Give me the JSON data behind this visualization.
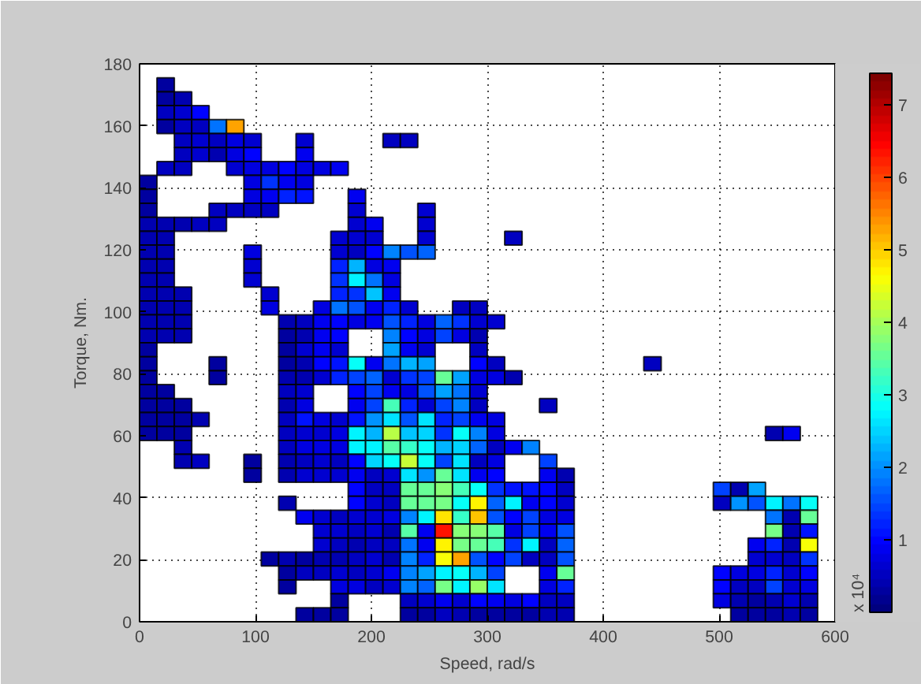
{
  "chart_data": {
    "type": "heatmap",
    "xlabel": "Speed, rad/s",
    "ylabel": "Torque, Nm.",
    "clabel": "x 10⁴",
    "x": [
      7.5,
      22.5,
      37.5,
      52.5,
      67.5,
      82.5,
      97.5,
      112.5,
      127.5,
      142.5,
      157.5,
      172.5,
      187.5,
      202.5,
      217.5,
      232.5,
      247.5,
      262.5,
      277.5,
      292.5,
      307.5,
      322.5,
      337.5,
      352.5,
      367.5,
      382.5,
      397.5,
      412.5,
      427.5,
      442.5,
      457.5,
      472.5,
      487.5,
      502.5,
      517.5,
      532.5,
      547.5,
      562.5,
      577.5
    ],
    "y": [
      173.25,
      168.75,
      164.25,
      159.75,
      155.25,
      150.75,
      146.25,
      141.75,
      137.25,
      132.75,
      128.25,
      123.75,
      119.25,
      114.75,
      110.25,
      105.75,
      101.25,
      96.75,
      92.25,
      87.75,
      83.25,
      78.75,
      74.25,
      69.75,
      65.25,
      60.75,
      56.25,
      51.75,
      47.25,
      42.75,
      38.25,
      33.75,
      29.25,
      24.75,
      20.25,
      15.75,
      11.25,
      6.75,
      2.25
    ],
    "xlim": [
      0,
      600
    ],
    "xticks": [
      0,
      100,
      200,
      300,
      400,
      500,
      600
    ],
    "ylim": [
      0,
      180
    ],
    "yticks": [
      0,
      20,
      40,
      60,
      80,
      100,
      120,
      140,
      160,
      180
    ],
    "clim": [
      0,
      7.44
    ],
    "cticks": [
      1,
      2,
      3,
      4,
      5,
      6,
      7
    ],
    "grid": true,
    "cells": [
      [
        null,
        0.3,
        null,
        null,
        null,
        null,
        null,
        null,
        null,
        null,
        null,
        null,
        null,
        null,
        null,
        null,
        null,
        null,
        null,
        null,
        null,
        null,
        null,
        null,
        null,
        null,
        null,
        null,
        null,
        null,
        null,
        null,
        null,
        null,
        null,
        null,
        null,
        null,
        null
      ],
      [
        null,
        0.3,
        0.4,
        null,
        null,
        null,
        null,
        null,
        null,
        null,
        null,
        null,
        null,
        null,
        null,
        null,
        null,
        null,
        null,
        null,
        null,
        null,
        null,
        null,
        null,
        null,
        null,
        null,
        null,
        null,
        null,
        null,
        null,
        null,
        null,
        null,
        null,
        null,
        null
      ],
      [
        null,
        0.5,
        0.6,
        1.0,
        null,
        null,
        null,
        null,
        null,
        null,
        null,
        null,
        null,
        null,
        null,
        null,
        null,
        null,
        null,
        null,
        null,
        null,
        null,
        null,
        null,
        null,
        null,
        null,
        null,
        null,
        null,
        null,
        null,
        null,
        null,
        null,
        null,
        null,
        null
      ],
      [
        null,
        0.3,
        0.5,
        0.5,
        1.8,
        5.3,
        null,
        null,
        null,
        null,
        null,
        null,
        null,
        null,
        null,
        null,
        null,
        null,
        null,
        null,
        null,
        null,
        null,
        null,
        null,
        null,
        null,
        null,
        null,
        null,
        null,
        null,
        null,
        null,
        null,
        null,
        null,
        null,
        null
      ],
      [
        null,
        null,
        0.5,
        0.6,
        0.5,
        0.7,
        0.6,
        null,
        null,
        0.6,
        null,
        null,
        null,
        null,
        0.5,
        0.5,
        null,
        null,
        null,
        null,
        null,
        null,
        null,
        null,
        null,
        null,
        null,
        null,
        null,
        null,
        null,
        null,
        null,
        null,
        null,
        null,
        null,
        null,
        null
      ],
      [
        null,
        null,
        0.5,
        0.6,
        0.4,
        0.7,
        1.0,
        null,
        null,
        0.9,
        null,
        null,
        null,
        null,
        null,
        null,
        null,
        null,
        null,
        null,
        null,
        null,
        null,
        null,
        null,
        null,
        null,
        null,
        null,
        null,
        null,
        null,
        null,
        null,
        null,
        null,
        null,
        null,
        null
      ],
      [
        null,
        0.5,
        0.5,
        null,
        null,
        0.6,
        0.7,
        0.8,
        1.0,
        0.8,
        0.7,
        0.9,
        null,
        null,
        null,
        null,
        null,
        null,
        null,
        null,
        null,
        null,
        null,
        null,
        null,
        null,
        null,
        null,
        null,
        null,
        null,
        null,
        null,
        null,
        null,
        null,
        null,
        null,
        null
      ],
      [
        0.3,
        null,
        null,
        null,
        null,
        null,
        0.7,
        1.3,
        0.9,
        0.7,
        null,
        null,
        null,
        null,
        null,
        null,
        null,
        null,
        null,
        null,
        null,
        null,
        null,
        null,
        null,
        null,
        null,
        null,
        null,
        null,
        null,
        null,
        null,
        null,
        null,
        null,
        null,
        null,
        null
      ],
      [
        0.3,
        null,
        null,
        null,
        null,
        null,
        0.8,
        0.9,
        1.2,
        1.1,
        null,
        null,
        0.9,
        null,
        null,
        null,
        null,
        null,
        null,
        null,
        null,
        null,
        null,
        null,
        null,
        null,
        null,
        null,
        null,
        null,
        null,
        null,
        null,
        null,
        null,
        null,
        null,
        null,
        null
      ],
      [
        0.3,
        null,
        null,
        null,
        0.5,
        0.5,
        0.5,
        0.5,
        null,
        null,
        null,
        null,
        0.6,
        null,
        null,
        null,
        0.6,
        null,
        null,
        null,
        null,
        null,
        null,
        null,
        null,
        null,
        null,
        null,
        null,
        null,
        null,
        null,
        null,
        null,
        null,
        null,
        null,
        null,
        null
      ],
      [
        0.4,
        0.4,
        0.4,
        0.5,
        0.5,
        null,
        null,
        null,
        null,
        null,
        null,
        null,
        0.6,
        0.9,
        null,
        null,
        0.6,
        null,
        null,
        null,
        null,
        null,
        null,
        null,
        null,
        null,
        null,
        null,
        null,
        null,
        null,
        null,
        null,
        null,
        null,
        null,
        null,
        null,
        null
      ],
      [
        0.4,
        0.4,
        null,
        null,
        null,
        null,
        null,
        null,
        null,
        null,
        null,
        0.6,
        0.6,
        0.6,
        null,
        null,
        0.6,
        null,
        null,
        null,
        null,
        0.5,
        null,
        null,
        null,
        null,
        null,
        null,
        null,
        null,
        null,
        null,
        null,
        null,
        null,
        null,
        null,
        null,
        null
      ],
      [
        0.4,
        0.4,
        null,
        null,
        null,
        null,
        0.7,
        null,
        null,
        null,
        null,
        0.6,
        0.5,
        1.0,
        1.9,
        1.6,
        1.7,
        null,
        null,
        null,
        null,
        null,
        null,
        null,
        null,
        null,
        null,
        null,
        null,
        null,
        null,
        null,
        null,
        null,
        null,
        null,
        null,
        null,
        null
      ],
      [
        0.4,
        0.4,
        null,
        null,
        null,
        null,
        0.6,
        null,
        null,
        null,
        null,
        1.2,
        2.3,
        0.8,
        0.9,
        null,
        null,
        null,
        null,
        null,
        null,
        null,
        null,
        null,
        null,
        null,
        null,
        null,
        null,
        null,
        null,
        null,
        null,
        null,
        null,
        null,
        null,
        null,
        null
      ],
      [
        0.4,
        0.4,
        null,
        null,
        null,
        null,
        0.6,
        null,
        null,
        null,
        null,
        1.3,
        2.7,
        1.8,
        0.8,
        null,
        null,
        null,
        null,
        null,
        null,
        null,
        null,
        null,
        null,
        null,
        null,
        null,
        null,
        null,
        null,
        null,
        null,
        null,
        null,
        null,
        null,
        null,
        null
      ],
      [
        0.4,
        0.4,
        0.4,
        null,
        null,
        null,
        null,
        0.6,
        null,
        null,
        null,
        1.2,
        1.3,
        2.4,
        0.9,
        null,
        null,
        null,
        null,
        null,
        null,
        null,
        null,
        null,
        null,
        null,
        null,
        null,
        null,
        null,
        null,
        null,
        null,
        null,
        null,
        null,
        null,
        null,
        null
      ],
      [
        0.4,
        0.4,
        0.4,
        null,
        null,
        null,
        null,
        0.7,
        null,
        null,
        0.8,
        1.8,
        1.6,
        0.9,
        1.2,
        0.6,
        null,
        null,
        0.5,
        0.5,
        null,
        null,
        null,
        null,
        null,
        null,
        null,
        null,
        null,
        null,
        null,
        null,
        null,
        null,
        null,
        null,
        null,
        null,
        null
      ],
      [
        0.4,
        0.4,
        0.4,
        null,
        null,
        null,
        null,
        null,
        0.4,
        0.5,
        0.9,
        1.0,
        0.8,
        0.9,
        1.6,
        1.2,
        0.8,
        1.7,
        1.3,
        0.6,
        0.6,
        null,
        null,
        null,
        null,
        null,
        null,
        null,
        null,
        null,
        null,
        null,
        null,
        null,
        null,
        null,
        null,
        null,
        null
      ],
      [
        0.4,
        0.4,
        0.4,
        null,
        null,
        null,
        null,
        null,
        0.3,
        0.4,
        0.9,
        1.0,
        null,
        null,
        1.9,
        1.0,
        0.8,
        1.5,
        0.8,
        0.4,
        null,
        null,
        null,
        null,
        null,
        null,
        null,
        null,
        null,
        null,
        null,
        null,
        null,
        null,
        null,
        null,
        null,
        null,
        null
      ],
      [
        0.3,
        null,
        null,
        null,
        null,
        null,
        null,
        null,
        0.3,
        0.6,
        0.9,
        0.6,
        null,
        null,
        2.2,
        0.9,
        0.6,
        null,
        null,
        0.5,
        null,
        null,
        null,
        null,
        null,
        null,
        null,
        null,
        null,
        null,
        null,
        null,
        null,
        null,
        null,
        null,
        null,
        null,
        null
      ],
      [
        0.3,
        null,
        null,
        null,
        0.3,
        null,
        null,
        null,
        0.3,
        0.4,
        1.0,
        1.1,
        2.8,
        0.9,
        1.8,
        2.3,
        2.2,
        null,
        null,
        1.0,
        0.5,
        null,
        null,
        null,
        null,
        null,
        null,
        null,
        null,
        0.5,
        null,
        null,
        null,
        null,
        null,
        null,
        null,
        null,
        null
      ],
      [
        0.3,
        null,
        null,
        null,
        0.3,
        null,
        null,
        null,
        0.4,
        0.4,
        0.6,
        1.2,
        1.4,
        1.7,
        0.6,
        1.3,
        1.4,
        3.6,
        2.2,
        0.8,
        0.7,
        0.4,
        null,
        null,
        null,
        null,
        null,
        null,
        null,
        null,
        null,
        null,
        null,
        null,
        null,
        null,
        null,
        null,
        null
      ],
      [
        0.3,
        0.3,
        null,
        null,
        null,
        null,
        null,
        null,
        0.5,
        0.6,
        null,
        null,
        1.0,
        1.4,
        0.9,
        0.8,
        1.6,
        2.1,
        1.8,
        0.6,
        null,
        null,
        null,
        null,
        null,
        null,
        null,
        null,
        null,
        null,
        null,
        null,
        null,
        null,
        null,
        null,
        null,
        null,
        null
      ],
      [
        0.3,
        0.3,
        0.3,
        null,
        null,
        null,
        null,
        null,
        0.4,
        0.8,
        null,
        null,
        0.9,
        1.5,
        3.3,
        1.2,
        0.6,
        1.5,
        1.9,
        0.5,
        null,
        null,
        null,
        0.5,
        null,
        null,
        null,
        null,
        null,
        null,
        null,
        null,
        null,
        null,
        null,
        null,
        null,
        null,
        null
      ],
      [
        0.3,
        0.3,
        0.3,
        0.4,
        null,
        null,
        null,
        null,
        0.5,
        1.1,
        0.7,
        0.6,
        1.1,
        2.0,
        2.6,
        1.6,
        2.6,
        1.2,
        1.4,
        0.9,
        0.8,
        null,
        null,
        null,
        null,
        null,
        null,
        null,
        null,
        null,
        null,
        null,
        null,
        null,
        null,
        null,
        null,
        null,
        null
      ],
      [
        0.3,
        0.3,
        0.3,
        null,
        null,
        null,
        null,
        null,
        0.5,
        0.6,
        0.6,
        0.7,
        2.7,
        2.3,
        4.1,
        2.4,
        2.5,
        1.3,
        2.8,
        1.9,
        0.7,
        null,
        null,
        null,
        null,
        null,
        null,
        null,
        null,
        null,
        null,
        null,
        null,
        null,
        null,
        null,
        0.4,
        0.9,
        null
      ],
      [
        null,
        null,
        0.4,
        null,
        null,
        null,
        null,
        null,
        0.5,
        0.7,
        0.7,
        0.8,
        2.7,
        2.7,
        3.4,
        3.2,
        2.9,
        2.3,
        2.5,
        1.7,
        0.5,
        0.9,
        1.9,
        null,
        null,
        null,
        null,
        null,
        null,
        null,
        null,
        null,
        null,
        null,
        null,
        null,
        null,
        null,
        null
      ],
      [
        null,
        null,
        0.4,
        0.5,
        null,
        null,
        0.3,
        null,
        0.4,
        0.5,
        0.6,
        0.5,
        1.0,
        2.5,
        2.8,
        4.3,
        2.9,
        1.4,
        2.6,
        0.5,
        0.7,
        null,
        null,
        1.5,
        null,
        null,
        null,
        null,
        null,
        null,
        null,
        null,
        null,
        null,
        null,
        null,
        null,
        null,
        null
      ],
      [
        null,
        null,
        null,
        null,
        null,
        null,
        0.3,
        null,
        0.4,
        0.6,
        0.6,
        0.6,
        0.9,
        0.5,
        0.6,
        2.6,
        2.0,
        3.6,
        2.6,
        0.9,
        1.0,
        null,
        null,
        0.9,
        0.4,
        null,
        null,
        null,
        null,
        null,
        null,
        null,
        null,
        null,
        null,
        null,
        null,
        null,
        null
      ],
      [
        null,
        null,
        null,
        null,
        null,
        null,
        null,
        null,
        null,
        null,
        null,
        null,
        1.0,
        0.5,
        0.5,
        3.6,
        3.6,
        3.8,
        3.3,
        2.9,
        1.3,
        1.1,
        1.1,
        1.0,
        0.5,
        null,
        null,
        null,
        null,
        null,
        null,
        null,
        null,
        1.5,
        0.4,
        2.2,
        null,
        null,
        null
      ],
      [
        null,
        null,
        null,
        null,
        null,
        null,
        null,
        null,
        0.4,
        null,
        null,
        null,
        1.0,
        0.6,
        0.5,
        3.5,
        3.6,
        3.7,
        2.9,
        4.7,
        1.7,
        2.7,
        0.9,
        1.0,
        0.6,
        null,
        null,
        null,
        null,
        null,
        null,
        null,
        null,
        0.5,
        2.0,
        1.6,
        2.7,
        1.8,
        2.8
      ],
      [
        null,
        null,
        null,
        null,
        null,
        null,
        null,
        null,
        null,
        0.9,
        0.6,
        0.5,
        0.6,
        0.6,
        0.8,
        1.9,
        2.7,
        4.8,
        3.2,
        5.0,
        1.6,
        1.0,
        1.5,
        0.7,
        0.7,
        null,
        null,
        null,
        null,
        null,
        null,
        null,
        null,
        null,
        null,
        null,
        1.8,
        0.4,
        3.6
      ],
      [
        null,
        null,
        null,
        null,
        null,
        null,
        null,
        null,
        null,
        null,
        0.6,
        0.6,
        0.5,
        0.6,
        0.4,
        3.4,
        0.9,
        6.3,
        3.8,
        3.8,
        3.4,
        0.7,
        1.5,
        0.9,
        1.6,
        null,
        null,
        null,
        null,
        null,
        null,
        null,
        null,
        null,
        null,
        null,
        3.7,
        0.4,
        1.1
      ],
      [
        null,
        null,
        null,
        null,
        null,
        null,
        null,
        null,
        null,
        null,
        0.6,
        0.5,
        0.4,
        0.5,
        0.5,
        1.8,
        0.9,
        4.7,
        3.7,
        3.5,
        3.3,
        1.3,
        2.7,
        0.5,
        1.7,
        null,
        null,
        null,
        null,
        null,
        null,
        null,
        null,
        null,
        null,
        0.9,
        1.2,
        0.4,
        4.6
      ],
      [
        null,
        null,
        null,
        null,
        null,
        null,
        null,
        0.3,
        0.4,
        0.3,
        0.4,
        0.4,
        0.5,
        0.6,
        0.4,
        1.9,
        1.2,
        4.6,
        5.3,
        1.6,
        1.0,
        1.4,
        0.5,
        0.5,
        1.6,
        null,
        null,
        null,
        null,
        null,
        null,
        null,
        null,
        null,
        null,
        0.6,
        0.6,
        0.5,
        1.3
      ],
      [
        null,
        null,
        null,
        null,
        null,
        null,
        null,
        null,
        0.3,
        0.5,
        0.5,
        0.6,
        0.5,
        0.6,
        0.9,
        1.9,
        2.2,
        2.7,
        2.9,
        2.3,
        1.5,
        null,
        null,
        0.9,
        3.6,
        null,
        null,
        null,
        null,
        null,
        null,
        null,
        null,
        1.0,
        0.7,
        0.8,
        1.2,
        0.6,
        1.0
      ],
      [
        null,
        null,
        null,
        null,
        null,
        null,
        null,
        null,
        0.3,
        null,
        null,
        0.8,
        0.7,
        0.5,
        0.6,
        1.9,
        1.7,
        3.7,
        2.7,
        3.9,
        2.6,
        null,
        null,
        0.8,
        1.2,
        null,
        null,
        null,
        null,
        null,
        null,
        null,
        null,
        1.0,
        0.5,
        0.5,
        1.5,
        0.6,
        0.8
      ],
      [
        null,
        null,
        null,
        null,
        null,
        null,
        null,
        null,
        null,
        null,
        null,
        0.3,
        null,
        null,
        null,
        0.5,
        0.6,
        0.9,
        0.6,
        1.0,
        0.9,
        0.8,
        1.0,
        0.5,
        0.5,
        null,
        null,
        null,
        null,
        null,
        null,
        null,
        null,
        0.8,
        0.4,
        0.3,
        0.4,
        0.6,
        0.4
      ],
      [
        null,
        null,
        null,
        null,
        null,
        null,
        null,
        null,
        null,
        0.3,
        0.3,
        0.3,
        null,
        null,
        null,
        0.3,
        0.3,
        0.5,
        0.4,
        0.3,
        0.3,
        0.3,
        0.3,
        0.4,
        0.4,
        null,
        null,
        null,
        null,
        null,
        null,
        null,
        null,
        null,
        0.3,
        0.3,
        0.3,
        0.4,
        0.3
      ]
    ]
  }
}
